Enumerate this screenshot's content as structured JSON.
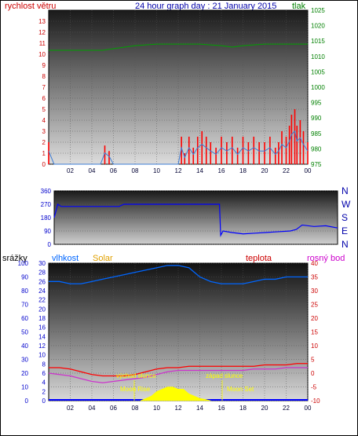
{
  "header": {
    "wind_label": "rychlost větru",
    "title": "24 hour graph day : 21 January 2015",
    "pressure_label": "tlak"
  },
  "bottom_header": {
    "rain": "srážky",
    "humidity": "vlhkost",
    "solar": "Solar",
    "temperature": "teplota",
    "dewpoint": "rosný bod"
  },
  "colors": {
    "wind": "#ff0000",
    "wind_avg": "#3a7bd5",
    "pressure": "#00a000",
    "direction": "#0000ff",
    "humidity": "#0066ff",
    "solar": "#ffff00",
    "temperature": "#ff0000",
    "dewpoint": "#cc33cc",
    "rain": "#0000ff",
    "axis_left": "#cc0000",
    "axis_right": "#008000",
    "axis_blue": "#0000cc",
    "axis_magenta": "#cc00cc",
    "annotation": "#ffff00"
  },
  "annotations": {
    "sunrise": "východ slunce",
    "sunset": "západ slunce",
    "moonrise": "Moon Rise",
    "moonset": "Moon Set"
  },
  "chart_data": [
    {
      "type": "line",
      "title": "24 hour graph day : 21 January 2015",
      "xlabel": "",
      "x_ticks": [
        "02",
        "04",
        "06",
        "08",
        "10",
        "12",
        "14",
        "16",
        "18",
        "20",
        "22",
        "00"
      ],
      "xlim": [
        0,
        24
      ],
      "series": [
        {
          "name": "rychlost větru",
          "axis": "left",
          "ylim": [
            0,
            14
          ],
          "x": [
            0,
            0.5,
            1,
            2,
            3,
            4,
            4.8,
            5.2,
            5.6,
            6,
            7,
            8,
            9,
            10,
            11,
            11.5,
            12,
            12.3,
            12.6,
            13,
            13.4,
            13.8,
            14.2,
            14.6,
            15,
            15.5,
            16,
            16.5,
            17,
            17.5,
            18,
            18.5,
            19,
            19.5,
            20,
            20.5,
            21,
            21.3,
            21.6,
            22,
            22.3,
            22.5,
            22.8,
            23,
            23.3,
            23.6,
            24
          ],
          "values": [
            2,
            0,
            0,
            0,
            0,
            0,
            0,
            1.7,
            1.2,
            0,
            0,
            0,
            0,
            0,
            0,
            0,
            0,
            2.5,
            1,
            2.5,
            1.5,
            2.5,
            3,
            2.5,
            2,
            1.5,
            2.5,
            2,
            2.5,
            1.5,
            2.5,
            2,
            2.5,
            2,
            2,
            2.5,
            1.5,
            2,
            3,
            2.5,
            3.5,
            4.5,
            5,
            3.5,
            4,
            3,
            2
          ]
        },
        {
          "name": "tlak",
          "axis": "right",
          "ylim": [
            975,
            1025
          ],
          "x": [
            0,
            2,
            4,
            5,
            6,
            8,
            10,
            12,
            14,
            16,
            17,
            18,
            20,
            22,
            24
          ],
          "values": [
            1012,
            1012,
            1012,
            1012,
            1012.5,
            1013.5,
            1014,
            1014,
            1014,
            1013.5,
            1013,
            1013.5,
            1014,
            1014,
            1014
          ]
        }
      ]
    },
    {
      "type": "line",
      "title": "",
      "y_ticks": [
        "360",
        "270",
        "180",
        "90",
        "0"
      ],
      "direction_labels": [
        "N",
        "W",
        "S",
        "E",
        "N"
      ],
      "ylim": [
        0,
        360
      ],
      "series": [
        {
          "name": "",
          "x": [
            0,
            0.3,
            0.6,
            5.5,
            5.9,
            6,
            14,
            14.1,
            14.3,
            15,
            16,
            17,
            18,
            19,
            20,
            20.5,
            21,
            22,
            23,
            24
          ],
          "values": [
            180,
            270,
            255,
            255,
            270,
            270,
            270,
            60,
            90,
            80,
            70,
            75,
            80,
            85,
            90,
            100,
            130,
            120,
            125,
            110
          ]
        }
      ]
    },
    {
      "type": "line",
      "title": "",
      "x_ticks": [
        "02",
        "04",
        "06",
        "08",
        "10",
        "12",
        "14",
        "16",
        "18",
        "20",
        "22",
        "00"
      ],
      "xlim": [
        0,
        24
      ],
      "series": [
        {
          "name": "srážky",
          "axis": "rain",
          "ylim": [
            0,
            100
          ],
          "x": [
            0,
            24
          ],
          "values": [
            0,
            0
          ]
        },
        {
          "name": "vlhkost",
          "axis": "humidity",
          "ylim": [
            0,
            30
          ],
          "x": [
            0,
            1,
            2,
            3,
            4,
            5,
            6,
            7,
            8,
            9,
            10,
            11,
            12,
            13,
            14,
            15,
            16,
            17,
            18,
            19,
            20,
            21,
            22,
            23,
            24
          ],
          "values": [
            26,
            26,
            25.5,
            25.5,
            26,
            26.5,
            27,
            27.5,
            28,
            28.5,
            29,
            29.5,
            29.5,
            29,
            27,
            26,
            25.5,
            25.5,
            25.5,
            26,
            26.5,
            26.5,
            27,
            27,
            27
          ]
        },
        {
          "name": "Solar",
          "axis": "humidity",
          "ylim": [
            0,
            30
          ],
          "x": [
            8.5,
            9,
            9.5,
            10,
            10.5,
            11,
            11.5,
            12,
            12.5,
            13,
            13.5,
            14,
            14.5,
            15
          ],
          "values": [
            0,
            0.5,
            1,
            2,
            2.5,
            3,
            3,
            2.5,
            2.5,
            1.5,
            1,
            0.5,
            0.3,
            0
          ]
        },
        {
          "name": "teplota",
          "axis": "temperature",
          "ylim": [
            -10,
            40
          ],
          "x": [
            0,
            1,
            2,
            3,
            4,
            5,
            6,
            7,
            8,
            9,
            10,
            11,
            12,
            13,
            14,
            15,
            16,
            17,
            18,
            19,
            20,
            21,
            22,
            23,
            24
          ],
          "values": [
            2,
            2,
            1.5,
            0.5,
            -0.5,
            -1,
            -1,
            -1,
            -0.5,
            0.5,
            1.5,
            2,
            2,
            2.5,
            2.5,
            2.5,
            2.5,
            2.5,
            2.5,
            2.5,
            3,
            3,
            3,
            3.5,
            3.5
          ]
        },
        {
          "name": "rosný bod",
          "axis": "temperature",
          "ylim": [
            -10,
            40
          ],
          "x": [
            0,
            1,
            2,
            3,
            4,
            5,
            6,
            7,
            8,
            9,
            10,
            11,
            12,
            13,
            14,
            15,
            16,
            17,
            18,
            19,
            20,
            21,
            22,
            23,
            24
          ],
          "values": [
            0,
            -0.5,
            -1,
            -2,
            -3,
            -3.5,
            -3,
            -2.5,
            -2,
            -1.5,
            -0.5,
            0.5,
            1,
            1,
            1,
            1,
            1,
            1,
            1,
            1.5,
            1.5,
            1.5,
            2,
            2,
            2
          ]
        }
      ]
    }
  ],
  "axes": {
    "top_left_ticks": [
      "0",
      "1",
      "2",
      "3",
      "4",
      "5",
      "6",
      "7",
      "8",
      "9",
      "10",
      "11",
      "12",
      "13"
    ],
    "top_right_ticks": [
      "975",
      "980",
      "985",
      "990",
      "995",
      "1000",
      "1005",
      "1010",
      "1015",
      "1020",
      "1025"
    ],
    "bottom_rain_ticks": [
      "0",
      "10",
      "20",
      "30",
      "40",
      "50",
      "60",
      "70",
      "80",
      "90",
      "100"
    ],
    "bottom_humidity_ticks": [
      "0",
      "2",
      "4",
      "6",
      "8",
      "10",
      "12",
      "14",
      "16",
      "18",
      "20",
      "22",
      "24",
      "26",
      "28",
      "30"
    ],
    "bottom_temp_ticks": [
      "-10",
      "-5",
      "0",
      "5",
      "10",
      "15",
      "20",
      "25",
      "30",
      "35",
      "40"
    ]
  }
}
